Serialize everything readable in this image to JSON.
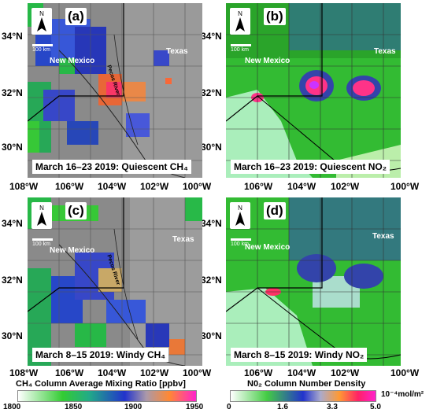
{
  "panels": {
    "a": {
      "letter": "(a)",
      "caption": "March 16–23 2019: Quiescent CH₄",
      "states": [
        "New Mexico",
        "Texas"
      ],
      "river": "Pecos River",
      "scale_label": "100 km"
    },
    "b": {
      "letter": "(b)",
      "caption": "March 16–23 2019: Quiescent NO₂",
      "states": [
        "New Mexico",
        "Texas"
      ],
      "scale_label": "100 km"
    },
    "c": {
      "letter": "(c)",
      "caption": "March 8–15 2019: Windy CH₄",
      "states": [
        "New Mexico",
        "Texas"
      ],
      "river": "Pecos River",
      "scale_label": "100 km"
    },
    "d": {
      "letter": "(d)",
      "caption": "March 8–15 2019: Windy NO₂",
      "states": [
        "New Mexico",
        "Texas"
      ],
      "scale_label": "100 km"
    }
  },
  "north_label": "N",
  "axes": {
    "lat_labels": [
      "34°N",
      "32°N",
      "30°N"
    ],
    "lon_labels": [
      "108°W",
      "106°W",
      "104°W",
      "102°W",
      "100°W"
    ]
  },
  "colorbars": {
    "ch4": {
      "title": "CH₄ Column Average Mixing Ratio [ppbv]",
      "ticks": [
        "1800",
        "1850",
        "1900",
        "1950"
      ],
      "min": 1800,
      "max": 1950
    },
    "no2": {
      "title": "N0₂ Column Number Density",
      "unit": "10⁻⁴mol/m²",
      "ticks": [
        "0",
        "1.6",
        "3.3",
        "5.0"
      ],
      "min": 0,
      "max": 5.0
    }
  },
  "colors": {
    "low": "#22cc22",
    "mid": "#2233cc",
    "high": "#ff3377",
    "background_gray": "#8c8c8c",
    "no2_bg": "#33bb33"
  }
}
